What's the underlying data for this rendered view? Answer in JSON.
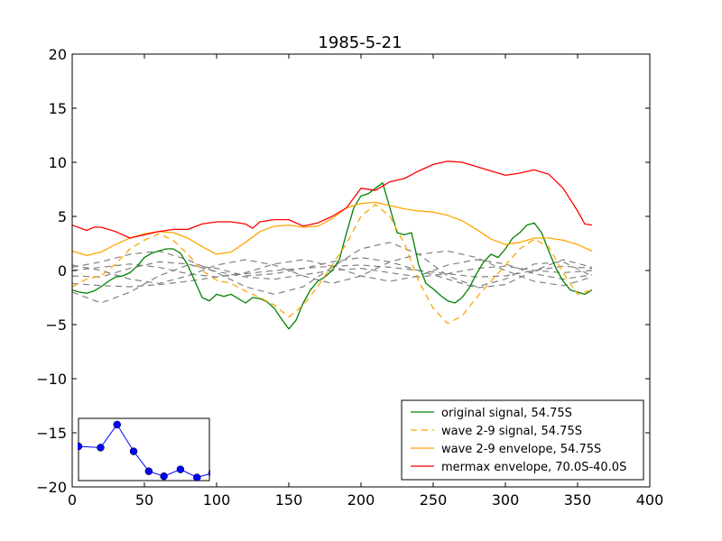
{
  "chart_data": {
    "type": "line",
    "title": "1985-5-21",
    "xlabel": "",
    "ylabel": "",
    "xlim": [
      0,
      400
    ],
    "ylim": [
      -20,
      20
    ],
    "xticks": [
      0,
      50,
      100,
      150,
      200,
      250,
      300,
      350,
      400
    ],
    "yticks": [
      -20,
      -15,
      -10,
      -5,
      0,
      5,
      10,
      15,
      20
    ],
    "xtick_labels": [
      "0",
      "50",
      "100",
      "150",
      "200",
      "250",
      "300",
      "350",
      "400"
    ],
    "ytick_labels": [
      "−20",
      "−15",
      "−10",
      "−5",
      "0",
      "5",
      "10",
      "15",
      "20"
    ],
    "grid": false,
    "legend_position": "lower-right",
    "series": [
      {
        "name": "original signal, 54.75S",
        "color": "#008000",
        "style": "solid",
        "x": [
          0,
          5,
          10,
          15,
          20,
          25,
          30,
          35,
          40,
          45,
          50,
          55,
          60,
          65,
          70,
          75,
          80,
          85,
          90,
          95,
          100,
          105,
          110,
          115,
          120,
          125,
          130,
          135,
          140,
          145,
          150,
          155,
          160,
          165,
          170,
          175,
          180,
          185,
          190,
          195,
          200,
          205,
          210,
          215,
          220,
          225,
          230,
          235,
          240,
          245,
          250,
          255,
          260,
          265,
          270,
          275,
          280,
          285,
          290,
          295,
          300,
          305,
          310,
          315,
          320,
          325,
          330,
          335,
          340,
          345,
          350,
          355,
          360
        ],
        "y": [
          -1.8,
          -2.0,
          -2.1,
          -1.9,
          -1.5,
          -1.0,
          -0.6,
          -0.5,
          -0.2,
          0.4,
          1.2,
          1.6,
          1.8,
          2.0,
          2.0,
          1.6,
          0.5,
          -1.0,
          -2.5,
          -2.8,
          -2.2,
          -2.4,
          -2.2,
          -2.6,
          -3.0,
          -2.5,
          -2.6,
          -2.9,
          -3.5,
          -4.5,
          -5.4,
          -4.6,
          -3.0,
          -1.8,
          -1.0,
          -0.6,
          0.0,
          1.0,
          3.5,
          5.8,
          6.9,
          7.1,
          7.6,
          8.1,
          5.8,
          3.5,
          3.3,
          3.5,
          0.5,
          -1.2,
          -1.7,
          -2.3,
          -2.8,
          -3.0,
          -2.5,
          -1.6,
          -0.3,
          0.8,
          1.5,
          1.2,
          2.0,
          3.0,
          3.5,
          4.2,
          4.4,
          3.5,
          1.8,
          0.2,
          -1.0,
          -1.8,
          -2.0,
          -2.2,
          -1.8
        ]
      },
      {
        "name": "wave 2-9 signal, 54.75S",
        "color": "#ffa500",
        "style": "dashed",
        "x": [
          0,
          10,
          20,
          30,
          40,
          50,
          60,
          70,
          80,
          90,
          100,
          110,
          120,
          130,
          140,
          150,
          160,
          170,
          180,
          190,
          200,
          210,
          220,
          230,
          240,
          250,
          260,
          270,
          280,
          290,
          300,
          310,
          320,
          330,
          340,
          350,
          360
        ],
        "y": [
          -1.5,
          -0.8,
          -0.5,
          0.6,
          2.0,
          2.8,
          3.4,
          2.8,
          1.5,
          0.0,
          -0.9,
          -1.2,
          -1.9,
          -2.5,
          -3.2,
          -4.3,
          -3.2,
          -1.5,
          0.5,
          2.5,
          5.0,
          6.1,
          5.0,
          2.5,
          -1.0,
          -3.5,
          -4.9,
          -4.2,
          -2.5,
          -1.0,
          0.5,
          2.0,
          2.9,
          2.2,
          -0.2,
          -2.2,
          -1.8
        ]
      },
      {
        "name": "wave 2-9 envelope, 54.75S",
        "color": "#ffa500",
        "style": "solid",
        "x": [
          0,
          10,
          20,
          30,
          40,
          50,
          60,
          70,
          80,
          90,
          100,
          110,
          120,
          130,
          140,
          150,
          160,
          170,
          180,
          190,
          200,
          210,
          220,
          230,
          240,
          250,
          260,
          270,
          280,
          290,
          300,
          310,
          320,
          330,
          340,
          350,
          360
        ],
        "y": [
          1.8,
          1.4,
          1.7,
          2.4,
          3.0,
          3.4,
          3.6,
          3.5,
          3.0,
          2.2,
          1.5,
          1.7,
          2.6,
          3.6,
          4.1,
          4.2,
          4.0,
          4.1,
          4.8,
          5.8,
          6.2,
          6.3,
          6.0,
          5.7,
          5.5,
          5.4,
          5.1,
          4.6,
          3.8,
          2.9,
          2.4,
          2.6,
          3.0,
          3.0,
          2.8,
          2.4,
          1.8
        ]
      },
      {
        "name": "mermax envelope, 70.0S-40.0S",
        "color": "#ff0000",
        "style": "solid",
        "x": [
          0,
          10,
          15,
          20,
          30,
          40,
          50,
          60,
          70,
          80,
          90,
          100,
          110,
          120,
          125,
          130,
          140,
          150,
          160,
          170,
          180,
          190,
          200,
          210,
          220,
          230,
          240,
          250,
          260,
          270,
          280,
          290,
          300,
          310,
          320,
          330,
          340,
          350,
          355,
          360
        ],
        "y": [
          4.2,
          3.7,
          4.0,
          4.0,
          3.6,
          3.0,
          3.3,
          3.6,
          3.8,
          3.8,
          4.3,
          4.5,
          4.5,
          4.3,
          3.9,
          4.5,
          4.7,
          4.7,
          4.1,
          4.4,
          5.0,
          5.8,
          7.6,
          7.4,
          8.2,
          8.5,
          9.2,
          9.8,
          10.1,
          10.0,
          9.6,
          9.2,
          8.8,
          9.0,
          9.3,
          8.9,
          7.6,
          5.5,
          4.3,
          4.2
        ]
      }
    ],
    "other_lines": {
      "description_color": "#808080",
      "style": "dashed",
      "lines": [
        {
          "x": [
            0,
            20,
            40,
            60,
            80,
            100,
            120,
            140,
            160,
            180,
            200,
            220,
            240,
            260,
            280,
            300,
            320,
            340,
            360
          ],
          "y": [
            0.3,
            0.8,
            1.5,
            1.8,
            1.0,
            -0.2,
            -1.5,
            -2.2,
            -1.5,
            0.3,
            2.0,
            2.6,
            1.5,
            -0.5,
            -1.5,
            -0.8,
            0.6,
            0.8,
            -0.5
          ]
        },
        {
          "x": [
            0,
            20,
            40,
            60,
            80,
            100,
            120,
            140,
            160,
            180,
            200,
            220,
            240,
            260,
            280,
            300,
            320,
            340,
            360
          ],
          "y": [
            -2.0,
            -3.0,
            -2.0,
            -0.5,
            0.5,
            0.2,
            -0.5,
            -0.3,
            0.2,
            0.8,
            1.2,
            0.8,
            0.0,
            -0.8,
            -1.6,
            -1.3,
            0.0,
            1.0,
            0.3
          ]
        },
        {
          "x": [
            0,
            20,
            40,
            60,
            80,
            100,
            120,
            140,
            160,
            180,
            200,
            220,
            240,
            260,
            280,
            300,
            320,
            340,
            360
          ],
          "y": [
            0.5,
            0.0,
            -0.8,
            -1.2,
            -0.5,
            0.5,
            1.0,
            0.5,
            -0.5,
            -1.2,
            -0.5,
            0.8,
            1.5,
            1.8,
            1.2,
            0.0,
            -1.0,
            -1.4,
            -0.6
          ]
        },
        {
          "x": [
            0,
            20,
            40,
            60,
            80,
            100,
            120,
            140,
            160,
            180,
            200,
            220,
            240,
            260,
            280,
            300,
            320,
            340,
            360
          ],
          "y": [
            -1.2,
            -1.4,
            -1.5,
            -1.3,
            -1.0,
            -0.6,
            -0.3,
            0.0,
            0.2,
            0.4,
            0.5,
            0.3,
            0.0,
            -0.3,
            -0.6,
            -0.5,
            0.0,
            0.4,
            0.2
          ]
        },
        {
          "x": [
            0,
            20,
            40,
            60,
            80,
            100,
            120,
            140,
            160,
            180,
            200,
            220,
            240,
            260,
            280,
            300,
            320,
            340,
            360
          ],
          "y": [
            0.0,
            0.3,
            0.6,
            0.3,
            -0.3,
            -0.6,
            -0.2,
            0.6,
            1.0,
            0.4,
            -0.5,
            -1.0,
            -0.5,
            0.5,
            1.0,
            0.6,
            -0.3,
            -0.8,
            -0.4
          ]
        },
        {
          "x": [
            0,
            20,
            40,
            60,
            80,
            100,
            120,
            140,
            160,
            180,
            200,
            220,
            240,
            260,
            280,
            300,
            320,
            340,
            360
          ],
          "y": [
            -0.5,
            -0.6,
            0.2,
            0.8,
            0.6,
            -0.1,
            -0.6,
            -0.8,
            -0.4,
            0.0,
            0.2,
            -0.2,
            -0.6,
            -0.3,
            0.2,
            0.4,
            0.0,
            -0.2,
            0.0
          ]
        }
      ]
    },
    "inset": {
      "type": "line",
      "color": "#0000ff",
      "marker": "circle",
      "xlim": [
        0,
        95
      ],
      "ylim": [
        0,
        1
      ],
      "x": [
        0,
        16,
        28,
        40,
        51,
        62,
        74,
        86,
        97
      ],
      "y": [
        0.55,
        0.53,
        0.9,
        0.47,
        0.15,
        0.07,
        0.18,
        0.05,
        0.12
      ]
    }
  }
}
